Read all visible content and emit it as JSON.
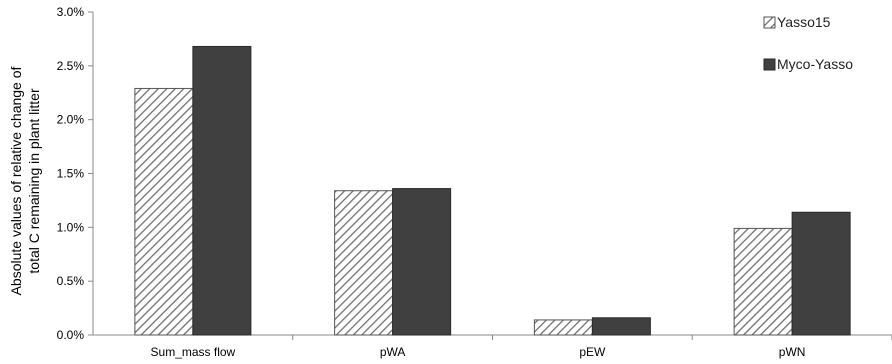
{
  "chart_data": {
    "type": "bar",
    "title": "",
    "xlabel": "",
    "ylabel_lines": [
      "Absolute values of relative change of",
      "total C remaining in plant litter"
    ],
    "categories": [
      "Sum_mass flow",
      "pWA",
      "pEW",
      "pWN"
    ],
    "y_tick_labels": [
      "0.0%",
      "0.5%",
      "1.0%",
      "1.5%",
      "2.0%",
      "2.5%",
      "3.0%"
    ],
    "ylim": [
      0,
      3.0
    ],
    "unit": "%",
    "grid": false,
    "legend_position": "top-right",
    "series": [
      {
        "name": "Yasso15",
        "values": [
          2.29,
          1.34,
          0.14,
          0.99
        ],
        "fill_pattern": "diagonal-hatch",
        "color": "#ffffff",
        "stroke": "#555555"
      },
      {
        "name": "Myco-Yasso",
        "values": [
          2.68,
          1.36,
          0.16,
          1.14
        ],
        "fill_pattern": "solid",
        "color": "#404040",
        "stroke": "#2a2a2a"
      }
    ]
  }
}
